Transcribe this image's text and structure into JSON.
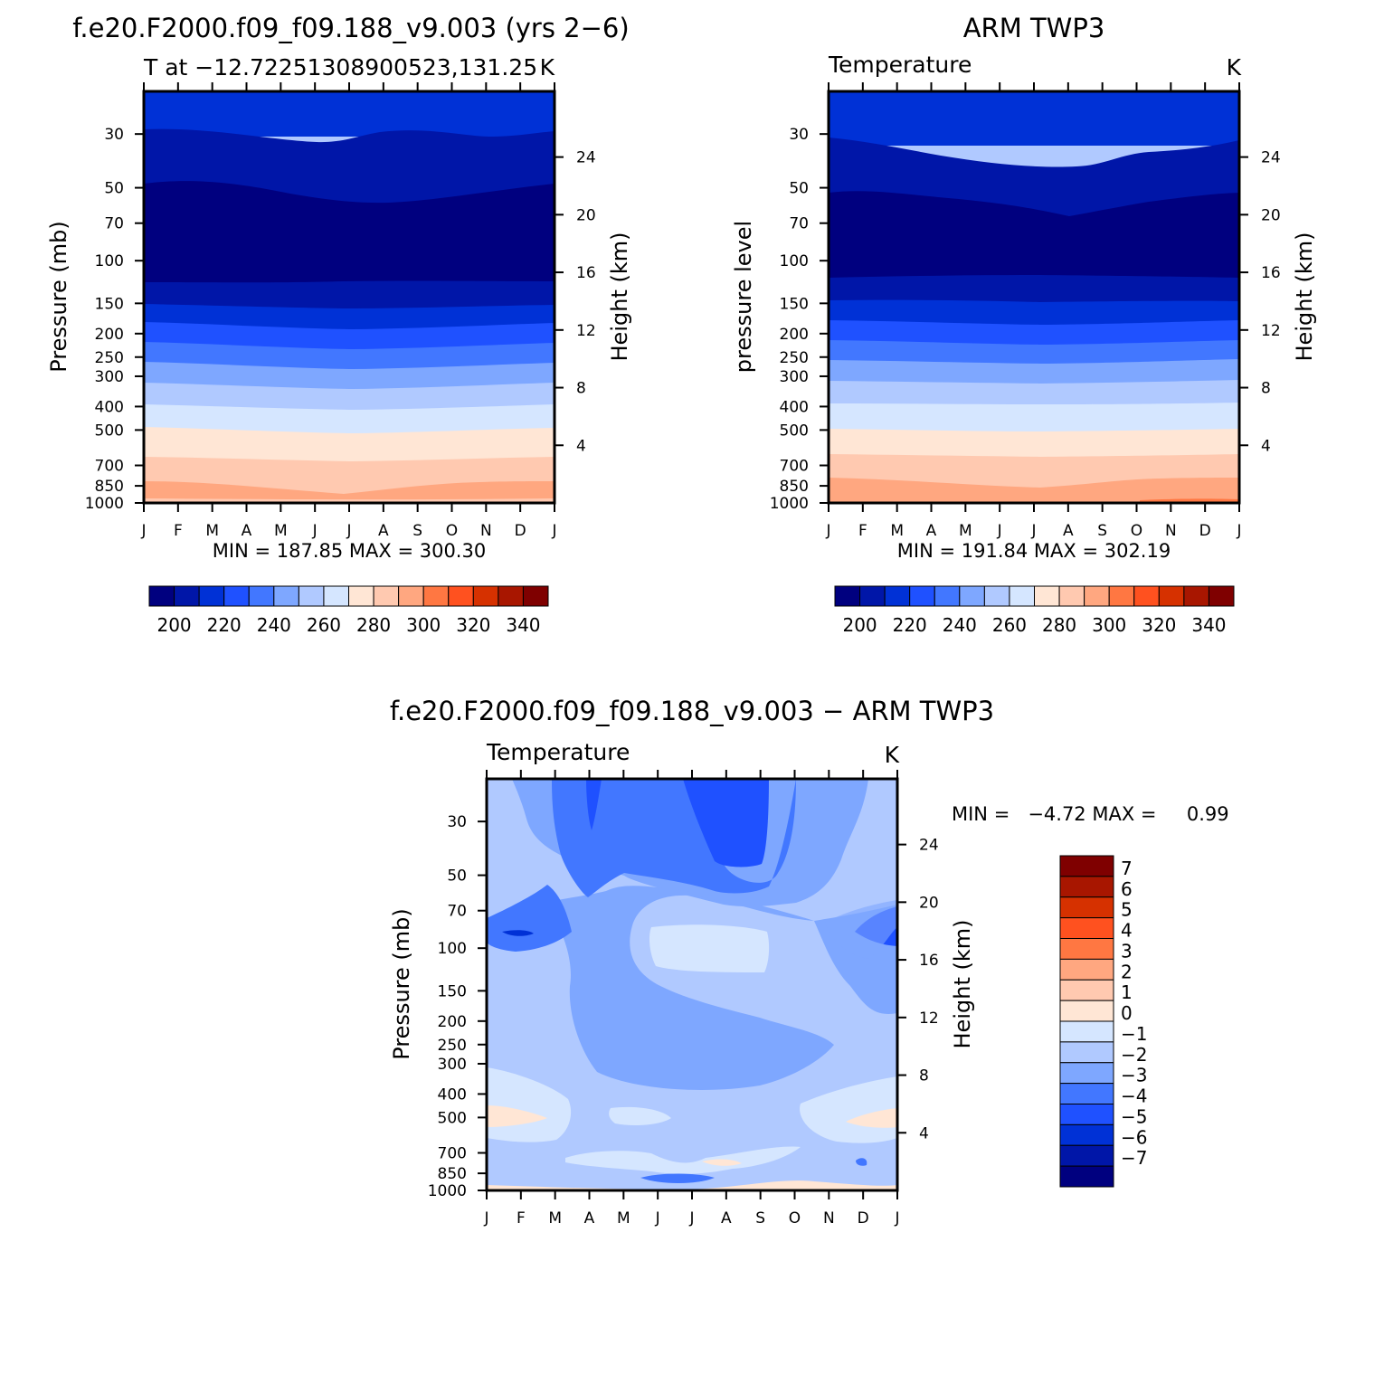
{
  "figure": {
    "months": [
      "J",
      "F",
      "M",
      "A",
      "M",
      "J",
      "J",
      "A",
      "S",
      "O",
      "N",
      "D",
      "J"
    ],
    "pressure_ticks": [
      30,
      50,
      70,
      100,
      150,
      200,
      250,
      300,
      400,
      500,
      700,
      850,
      1000
    ],
    "height_ticks": [
      4,
      8,
      12,
      16,
      20,
      24
    ],
    "palette": [
      "#00007f",
      "#0016a8",
      "#0031d6",
      "#1f51ff",
      "#4277ff",
      "#7ea7ff",
      "#b0c9ff",
      "#d5e6ff",
      "#ffe6d5",
      "#ffc9b0",
      "#ffa780",
      "#ff7742",
      "#ff511f",
      "#d63100",
      "#a81600",
      "#7f0000"
    ]
  },
  "panels": [
    {
      "id": "model",
      "title": "f.e20.F2000.f09_f09.188_v9.003 (yrs 2−6)",
      "left_label": "T at −12.72251308900523,131.25",
      "right_label": "K",
      "ylabel": "Pressure (mb)",
      "y2label": "Height (km)",
      "stats": "MIN = 187.85 MAX = 300.30",
      "colorbar_labels": [
        "200",
        "220",
        "240",
        "260",
        "280",
        "300",
        "320",
        "340"
      ]
    },
    {
      "id": "obs",
      "title": "ARM TWP3",
      "left_label": "Temperature",
      "right_label": "K",
      "ylabel": "pressure level",
      "y2label": "Height (km)",
      "stats": "MIN = 191.84 MAX = 302.19",
      "colorbar_labels": [
        "200",
        "220",
        "240",
        "260",
        "280",
        "300",
        "320",
        "340"
      ]
    },
    {
      "id": "diff",
      "title": "f.e20.F2000.f09_f09.188_v9.003 − ARM TWP3",
      "left_label": "Temperature",
      "right_label": "K",
      "ylabel": "Pressure (mb)",
      "y2label": "Height (km)",
      "stats": "MIN =   −4.72 MAX =     0.99",
      "colorbar_labels": [
        "7",
        "6",
        "5",
        "4",
        "3",
        "2",
        "1",
        "0",
        "−1",
        "−2",
        "−3",
        "−4",
        "−5",
        "−6",
        "−7"
      ]
    }
  ],
  "chart_data": [
    {
      "type": "heatmap",
      "title": "f.e20.F2000.f09_f09.188_v9.003 (yrs 2−6)",
      "subtitle": "T at −12.72251308900523,131.25",
      "units": "K",
      "xlabel": "",
      "ylabel": "Pressure (mb)",
      "y2label": "Height (km)",
      "x": [
        "J",
        "F",
        "M",
        "A",
        "M",
        "J",
        "J",
        "A",
        "S",
        "O",
        "N",
        "D",
        "J"
      ],
      "y_log_pressure": true,
      "ylim": [
        1000,
        20
      ],
      "contour_levels": [
        200,
        210,
        220,
        230,
        240,
        250,
        260,
        270,
        280,
        290,
        300,
        310,
        320,
        330,
        340
      ],
      "approx_temperature_profile": {
        "pressure": [
          30,
          50,
          70,
          100,
          150,
          200,
          250,
          300,
          400,
          500,
          700,
          850,
          1000
        ],
        "temperature": [
          222,
          205,
          194,
          193,
          207,
          219,
          229,
          239,
          255,
          268,
          282,
          291,
          299
        ]
      },
      "min": 187.85,
      "max": 300.3
    },
    {
      "type": "heatmap",
      "title": "ARM TWP3",
      "subtitle": "Temperature",
      "units": "K",
      "xlabel": "",
      "ylabel": "pressure level",
      "y2label": "Height (km)",
      "x": [
        "J",
        "F",
        "M",
        "A",
        "M",
        "J",
        "J",
        "A",
        "S",
        "O",
        "N",
        "D",
        "J"
      ],
      "y_log_pressure": true,
      "ylim": [
        1000,
        20
      ],
      "contour_levels": [
        200,
        210,
        220,
        230,
        240,
        250,
        260,
        270,
        280,
        290,
        300,
        310,
        320,
        330,
        340
      ],
      "approx_temperature_profile": {
        "pressure": [
          30,
          50,
          70,
          100,
          150,
          200,
          250,
          300,
          400,
          500,
          700,
          850,
          1000
        ],
        "temperature": [
          223,
          207,
          196,
          194,
          208,
          221,
          231,
          241,
          257,
          270,
          284,
          293,
          301
        ]
      },
      "min": 191.84,
      "max": 302.19
    },
    {
      "type": "heatmap",
      "title": "f.e20.F2000.f09_f09.188_v9.003 − ARM TWP3",
      "subtitle": "Temperature",
      "units": "K",
      "xlabel": "",
      "ylabel": "Pressure (mb)",
      "y2label": "Height (km)",
      "x": [
        "J",
        "F",
        "M",
        "A",
        "M",
        "J",
        "J",
        "A",
        "S",
        "O",
        "N",
        "D",
        "J"
      ],
      "y_log_pressure": true,
      "ylim": [
        1000,
        20
      ],
      "contour_levels": [
        -7,
        -6,
        -5,
        -4,
        -3,
        -2,
        -1,
        0,
        1,
        2,
        3,
        4,
        5,
        6,
        7
      ],
      "min": -4.72,
      "max": 0.99
    }
  ]
}
